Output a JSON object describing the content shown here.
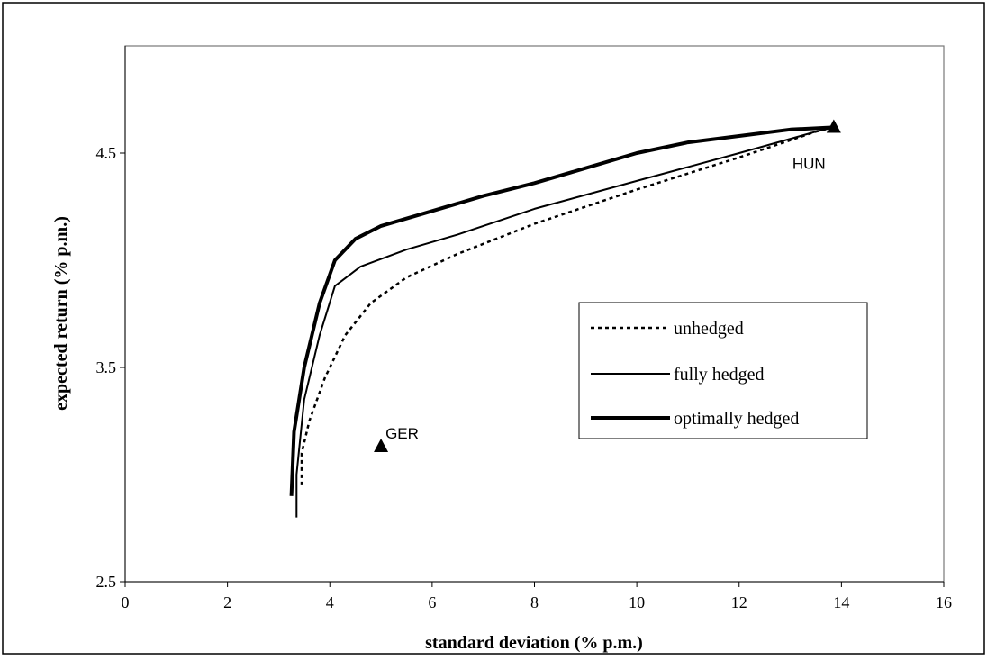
{
  "chart_data": {
    "type": "line",
    "title": "",
    "xlabel": "standard deviation (% p.m.)",
    "ylabel": "expected return (% p.m.)",
    "xlim": [
      0,
      16
    ],
    "ylim": [
      2.5,
      5.0
    ],
    "x_ticks": [
      "0",
      "2",
      "4",
      "6",
      "8",
      "10",
      "12",
      "14",
      "16"
    ],
    "y_ticks": [
      "2.5",
      "3.5",
      "4.5"
    ],
    "grid": false,
    "legend_position": "right",
    "series": [
      {
        "name": "unhedged",
        "style": "dotted",
        "points": [
          [
            3.45,
            2.95
          ],
          [
            3.45,
            3.1
          ],
          [
            3.6,
            3.25
          ],
          [
            3.9,
            3.45
          ],
          [
            4.3,
            3.65
          ],
          [
            4.8,
            3.8
          ],
          [
            5.5,
            3.92
          ],
          [
            6.5,
            4.03
          ],
          [
            8,
            4.17
          ],
          [
            10,
            4.33
          ],
          [
            12,
            4.48
          ],
          [
            13.5,
            4.6
          ],
          [
            13.85,
            4.62
          ]
        ]
      },
      {
        "name": "fully hedged",
        "style": "solid",
        "points": [
          [
            3.35,
            2.8
          ],
          [
            3.35,
            3.0
          ],
          [
            3.5,
            3.35
          ],
          [
            3.8,
            3.65
          ],
          [
            4.1,
            3.88
          ],
          [
            4.6,
            3.97
          ],
          [
            5.5,
            4.05
          ],
          [
            6.5,
            4.12
          ],
          [
            8,
            4.24
          ],
          [
            10,
            4.37
          ],
          [
            12,
            4.5
          ],
          [
            13.5,
            4.6
          ],
          [
            13.85,
            4.62
          ]
        ]
      },
      {
        "name": "optimally hedged",
        "style": "thick",
        "points": [
          [
            3.25,
            2.9
          ],
          [
            3.3,
            3.2
          ],
          [
            3.5,
            3.5
          ],
          [
            3.8,
            3.8
          ],
          [
            4.1,
            4.0
          ],
          [
            4.5,
            4.1
          ],
          [
            5,
            4.16
          ],
          [
            6,
            4.23
          ],
          [
            7,
            4.3
          ],
          [
            8,
            4.36
          ],
          [
            9,
            4.43
          ],
          [
            10,
            4.5
          ],
          [
            11,
            4.55
          ],
          [
            12,
            4.58
          ],
          [
            13,
            4.61
          ],
          [
            13.85,
            4.62
          ]
        ]
      }
    ],
    "markers": [
      {
        "label": "GER",
        "x": 5.0,
        "y": 3.13
      },
      {
        "label": "HUN",
        "x": 13.85,
        "y": 4.62
      }
    ]
  }
}
